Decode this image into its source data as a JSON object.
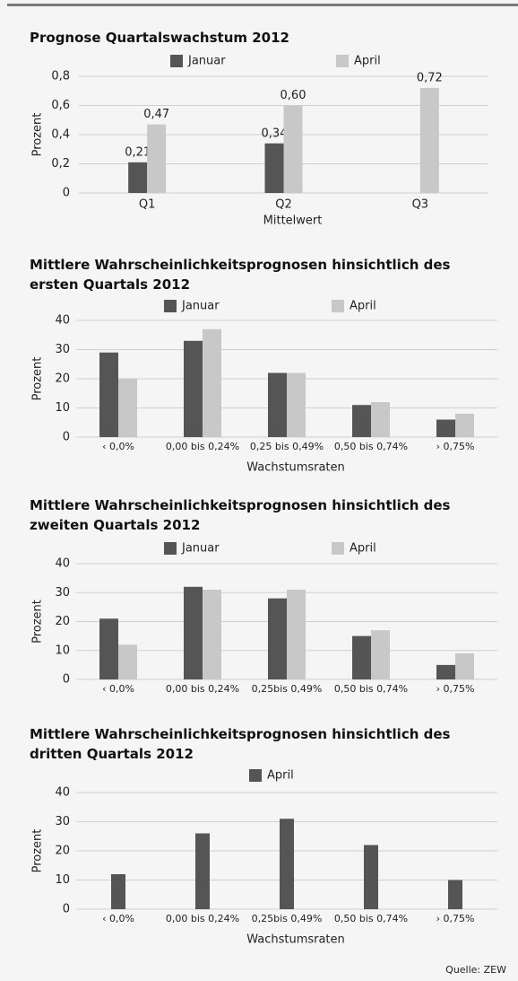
{
  "chart_data": [
    {
      "type": "bar",
      "title": "Prognose Quartalswachstum 2012",
      "categories": [
        "Q1",
        "Q2",
        "Q3"
      ],
      "series": [
        {
          "name": "Januar",
          "color": "#555555",
          "values": [
            0.21,
            0.34,
            null
          ],
          "value_labels": [
            "0,21",
            "0,34",
            null
          ]
        },
        {
          "name": "April",
          "color": "#c8c8c8",
          "values": [
            0.47,
            0.6,
            0.72
          ],
          "value_labels": [
            "0,47",
            "0,60",
            "0,72"
          ]
        }
      ],
      "ylim": [
        0,
        0.8
      ],
      "yticks": [
        0,
        {
          "value": 0.2,
          "label": "0,2"
        },
        {
          "value": 0.4,
          "label": "0,4"
        },
        {
          "value": 0.6,
          "label": "0,6"
        },
        {
          "value": 0.8,
          "label": "0,8"
        }
      ],
      "y_label": "Prozent",
      "x_label": "Mittelwert",
      "grid": true
    },
    {
      "type": "bar",
      "title": "Mittlere Wahrscheinlichkeitsprognosen hinsichtlich des ersten Quartals 2012",
      "categories": [
        "‹ 0,0%",
        "0,00 bis 0,24%",
        "0,25 bis 0,49%",
        "0,50 bis 0,74%",
        "› 0,75%"
      ],
      "series": [
        {
          "name": "Januar",
          "color": "#555555",
          "values": [
            29,
            33,
            22,
            11,
            6
          ]
        },
        {
          "name": "April",
          "color": "#c8c8c8",
          "values": [
            20,
            37,
            22,
            12,
            8
          ]
        }
      ],
      "ylim": [
        0,
        40
      ],
      "yticks": [
        0,
        10,
        20,
        30,
        40
      ],
      "y_label": "Prozent",
      "x_label": "Wachstumsraten",
      "grid": true
    },
    {
      "type": "bar",
      "title": "Mittlere Wahrscheinlichkeitsprognosen hinsichtlich des zweiten Quartals 2012",
      "categories": [
        "‹ 0,0%",
        "0,00 bis 0,24%",
        "0,25bis 0,49%",
        "0,50 bis 0,74%",
        "› 0,75%"
      ],
      "series": [
        {
          "name": "Januar",
          "color": "#555555",
          "values": [
            21,
            32,
            28,
            15,
            5
          ]
        },
        {
          "name": "April",
          "color": "#c8c8c8",
          "values": [
            12,
            31,
            31,
            17,
            9
          ]
        }
      ],
      "ylim": [
        0,
        40
      ],
      "yticks": [
        0,
        10,
        20,
        30,
        40
      ],
      "y_label": "Prozent",
      "grid": true
    },
    {
      "type": "bar",
      "title": "Mittlere Wahrscheinlichkeitsprognosen hinsichtlich des dritten Quartals 2012",
      "categories": [
        "‹ 0,0%",
        "0,00 bis 0,24%",
        "0,25bis 0,49%",
        "0,50 bis 0,74%",
        "› 0,75%"
      ],
      "series": [
        {
          "name": "April",
          "color": "#555555",
          "values": [
            12,
            26,
            31,
            22,
            10
          ]
        }
      ],
      "ylim": [
        0,
        40
      ],
      "yticks": [
        0,
        10,
        20,
        30,
        40
      ],
      "y_label": "Prozent",
      "x_label": "Wachstumsraten",
      "grid": true
    }
  ],
  "source": "Quelle: ZEW"
}
